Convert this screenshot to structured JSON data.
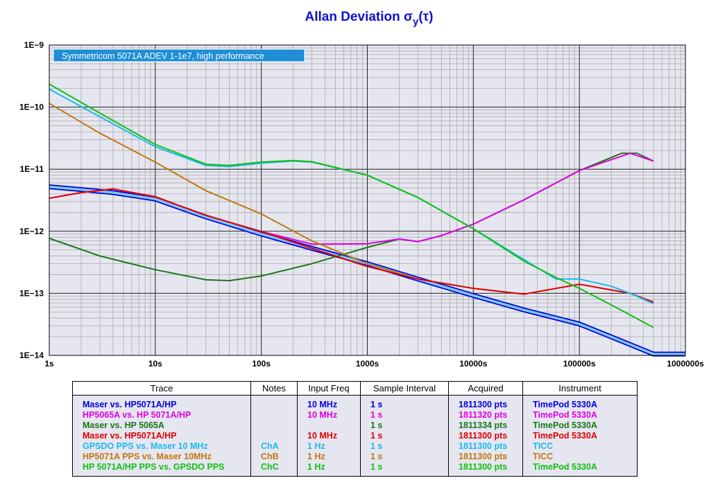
{
  "title": {
    "main": "Allan Deviation σ",
    "sub": "y",
    "suffix": "(τ)"
  },
  "colors": {
    "plot_bg": "#e6e6f0",
    "grid_major": "#222222",
    "grid_minor": "#aaaaaa",
    "label_box_bg": "#1e8ed6",
    "title": "#1010d0"
  },
  "chart_data": {
    "type": "line",
    "title": "Allan Deviation σy(τ)",
    "xlabel": "",
    "ylabel": "",
    "x_scale": "log",
    "y_scale": "log",
    "xlim": [
      1,
      1000000
    ],
    "ylim": [
      1e-14,
      1e-09
    ],
    "grid": true,
    "x_ticks": [
      "1s",
      "10s",
      "100s",
      "1000s",
      "10000s",
      "100000s",
      "1000000s"
    ],
    "y_ticks": [
      "1E−14",
      "1E−13",
      "1E−12",
      "1E−11",
      "1E−10",
      "1E−9"
    ],
    "annotation": "Symmetricom 5071A ADEV 1-1e7, high performance",
    "series": [
      {
        "name": "Maser vs. HP5071A/HP",
        "color": "#0000e0",
        "band": true,
        "x": [
          1,
          2,
          4,
          10,
          30,
          100,
          300,
          1000,
          3000,
          10000,
          30000,
          100000,
          300000,
          500000,
          1000000
        ],
        "y": [
          5.2e-12,
          4.7e-12,
          4.2e-12,
          3.3e-12,
          1.7e-12,
          9e-13,
          5.3e-13,
          3e-13,
          1.7e-13,
          9.2e-14,
          5.4e-14,
          3.2e-14,
          1.5e-14,
          1.05e-14,
          1.05e-14
        ]
      },
      {
        "name": "HP5065A vs. HP 5071A/HP",
        "color": "#e000e0",
        "x": [
          1,
          2,
          4,
          10,
          30,
          100,
          300,
          1000,
          2000,
          3000,
          5000,
          10000,
          30000,
          100000,
          300000,
          500000
        ],
        "y": [
          3.4e-12,
          4.2e-12,
          4.8e-12,
          3.6e-12,
          1.8e-12,
          9.9e-13,
          6.2e-13,
          6.3e-13,
          7.5e-13,
          6.8e-13,
          8.5e-13,
          1.3e-12,
          3.2e-12,
          9.5e-12,
          1.8e-11,
          1.35e-11
        ]
      },
      {
        "name": "Maser vs. HP 5065A",
        "color": "#187818",
        "x": [
          1,
          3,
          10,
          30,
          50,
          100,
          300,
          1000,
          2000,
          3000,
          5000,
          10000,
          30000,
          100000,
          250000,
          350000,
          500000
        ],
        "y": [
          7.7e-13,
          4e-13,
          2.4e-13,
          1.65e-13,
          1.6e-13,
          1.9e-13,
          3e-13,
          5.5e-13,
          7.5e-13,
          6.8e-13,
          8.5e-13,
          1.3e-12,
          3.2e-12,
          9.5e-12,
          1.8e-11,
          1.8e-11,
          1.35e-11
        ]
      },
      {
        "name": "Maser vs. HP5071A/HP",
        "color": "#e00000",
        "x": [
          1,
          2,
          4,
          10,
          30,
          100,
          300,
          1000,
          3000,
          10000,
          30000,
          100000,
          300000,
          500000
        ],
        "y": [
          3.4e-12,
          4.2e-12,
          4.8e-12,
          3.6e-12,
          1.8e-12,
          9.9e-13,
          5.3e-13,
          2.7e-13,
          1.7e-13,
          1.2e-13,
          9.7e-14,
          1.4e-13,
          1e-13,
          7.2e-14
        ]
      },
      {
        "name": "GPSDO PPS vs. Maser 10 MHz",
        "color": "#1ab8f0",
        "x": [
          1,
          3,
          10,
          30,
          50,
          100,
          200,
          300,
          1000,
          3000,
          10000,
          30000,
          60000,
          100000,
          200000,
          300000,
          500000
        ],
        "y": [
          1.95e-10,
          7e-11,
          2.3e-11,
          1.15e-11,
          1.1e-11,
          1.25e-11,
          1.35e-11,
          1.3e-11,
          8e-12,
          3.5e-12,
          1.1e-12,
          3.5e-13,
          1.7e-13,
          1.7e-13,
          1.3e-13,
          1e-13,
          6.8e-14
        ]
      },
      {
        "name": "HP5071A PPS vs. Maser 10MHz",
        "color": "#c07810",
        "x": [
          1,
          3,
          10,
          30,
          100,
          300,
          1000,
          3000,
          10000,
          30000,
          100000,
          300000,
          500000
        ],
        "y": [
          1.15e-10,
          3.8e-11,
          1.3e-11,
          4.5e-12,
          1.9e-12,
          7e-13,
          3e-13,
          1.7e-13,
          1.2e-13,
          9.7e-14,
          1.4e-13,
          1e-13,
          7.2e-14
        ]
      },
      {
        "name": "HP 5071A/HP PPS vs. GPSDO PPS",
        "color": "#10c010",
        "x": [
          1,
          3,
          10,
          30,
          50,
          100,
          200,
          300,
          1000,
          3000,
          10000,
          30000,
          60000,
          100000,
          200000,
          300000,
          500000
        ],
        "y": [
          2.35e-10,
          8e-11,
          2.5e-11,
          1.2e-11,
          1.15e-11,
          1.3e-11,
          1.38e-11,
          1.32e-11,
          8e-12,
          3.5e-12,
          1.1e-12,
          3.3e-13,
          1.8e-13,
          1.2e-13,
          6.5e-14,
          4.5e-14,
          2.8e-14
        ]
      }
    ]
  },
  "table": {
    "headers": [
      "Trace",
      "Notes",
      "Input Freq",
      "Sample Interval",
      "Acquired",
      "Instrument"
    ],
    "rows": [
      {
        "trace": "Maser vs. HP5071A/HP",
        "notes": "",
        "freq": "10 MHz",
        "interval": "1 s",
        "acquired": "1811300 pts",
        "instrument": "TimePod 5330A",
        "color": "#0000e0"
      },
      {
        "trace": "HP5065A vs. HP 5071A/HP",
        "notes": "",
        "freq": "10 MHz",
        "interval": "1 s",
        "acquired": "1811320 pts",
        "instrument": "TimePod 5330A",
        "color": "#e000e0"
      },
      {
        "trace": "Maser vs. HP 5065A",
        "notes": "",
        "freq": "",
        "interval": "1 s",
        "acquired": "1811334 pts",
        "instrument": "TimePod 5330A",
        "color": "#187818"
      },
      {
        "trace": "Maser vs. HP5071A/HP",
        "notes": "",
        "freq": "10 MHz",
        "interval": "1 s",
        "acquired": "1811300 pts",
        "instrument": "TimePod 5330A",
        "color": "#e00000"
      },
      {
        "trace": "GPSDO PPS vs. Maser 10 MHz",
        "notes": "ChA",
        "freq": "1 Hz",
        "interval": "1 s",
        "acquired": "1811300 pts",
        "instrument": "TICC",
        "color": "#1ab8f0"
      },
      {
        "trace": "HP5071A PPS vs. Maser 10MHz",
        "notes": "ChB",
        "freq": "1 Hz",
        "interval": "1 s",
        "acquired": "1811300 pts",
        "instrument": "TICC",
        "color": "#c07810"
      },
      {
        "trace": "HP 5071A/HP PPS vs. GPSDO PPS",
        "notes": "ChC",
        "freq": "1 Hz",
        "interval": "1 s",
        "acquired": "1811300 pts",
        "instrument": "TimePod 5330A",
        "color": "#10c010"
      }
    ]
  }
}
